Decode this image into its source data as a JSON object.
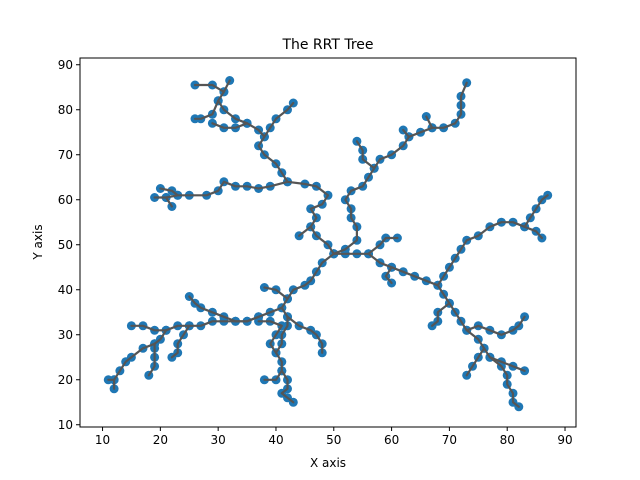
{
  "chart_data": {
    "type": "scatter",
    "title": "The RRT Tree",
    "xlabel": "X axis",
    "ylabel": "Y axis",
    "xlim": [
      6.1,
      91.9
    ],
    "ylim": [
      9.5,
      91.5
    ],
    "xticks": [
      10,
      20,
      30,
      40,
      50,
      60,
      70,
      80,
      90
    ],
    "yticks": [
      10,
      20,
      30,
      40,
      50,
      60,
      70,
      80,
      90
    ],
    "grid": false,
    "legend": "none",
    "colors": {
      "node": "#1f77b4",
      "edge": "#555555"
    },
    "root": [
      50,
      48
    ],
    "branches": [
      [
        [
          50,
          48
        ],
        [
          49,
          50
        ],
        [
          47,
          52
        ],
        [
          46,
          54
        ],
        [
          47,
          56
        ],
        [
          46,
          58
        ],
        [
          48,
          59
        ],
        [
          49,
          61
        ],
        [
          47,
          63
        ],
        [
          45,
          63.5
        ],
        [
          42,
          64
        ],
        [
          41,
          66
        ],
        [
          40,
          68
        ],
        [
          38,
          70
        ],
        [
          37,
          72
        ],
        [
          38,
          74
        ],
        [
          37,
          75.5
        ],
        [
          35,
          77
        ],
        [
          33,
          78
        ],
        [
          31,
          80
        ],
        [
          30,
          82
        ],
        [
          31,
          84
        ],
        [
          32,
          86.5
        ]
      ],
      [
        [
          31,
          84
        ],
        [
          29,
          85.5
        ],
        [
          26,
          85.5
        ]
      ],
      [
        [
          30,
          82
        ],
        [
          29,
          79
        ],
        [
          27,
          78
        ],
        [
          26,
          78
        ]
      ],
      [
        [
          35,
          77
        ],
        [
          33,
          76
        ],
        [
          31,
          76
        ],
        [
          29,
          77
        ]
      ],
      [
        [
          38,
          74
        ],
        [
          39,
          76
        ],
        [
          40,
          78
        ],
        [
          42,
          80
        ],
        [
          43,
          81.5
        ]
      ],
      [
        [
          42,
          64
        ],
        [
          39,
          63
        ],
        [
          37,
          62.5
        ],
        [
          35,
          63
        ],
        [
          33,
          63
        ],
        [
          31,
          64
        ],
        [
          30,
          62
        ],
        [
          28,
          61
        ],
        [
          25,
          61
        ],
        [
          23,
          61
        ],
        [
          21,
          60.5
        ],
        [
          19,
          60.5
        ]
      ],
      [
        [
          21,
          60.5
        ],
        [
          22,
          58.5
        ]
      ],
      [
        [
          23,
          61
        ],
        [
          22,
          62
        ],
        [
          20,
          62.5
        ]
      ],
      [
        [
          50,
          48
        ],
        [
          52,
          49
        ],
        [
          54,
          51
        ],
        [
          54,
          54
        ],
        [
          53,
          56
        ],
        [
          53,
          58
        ],
        [
          52,
          60
        ],
        [
          53,
          62
        ],
        [
          55,
          63
        ],
        [
          56,
          65
        ],
        [
          57,
          67
        ],
        [
          58,
          69
        ],
        [
          60,
          70
        ],
        [
          62,
          72
        ],
        [
          63,
          74
        ],
        [
          65,
          75
        ],
        [
          67,
          76
        ],
        [
          69,
          76
        ],
        [
          71,
          77
        ],
        [
          72,
          79
        ],
        [
          72,
          81
        ],
        [
          72,
          83
        ],
        [
          73,
          86
        ]
      ],
      [
        [
          57,
          67
        ],
        [
          55,
          69
        ],
        [
          55,
          71
        ],
        [
          54,
          73
        ]
      ],
      [
        [
          63,
          74
        ],
        [
          62,
          75.5
        ]
      ],
      [
        [
          67,
          76
        ],
        [
          66,
          78.5
        ]
      ],
      [
        [
          50,
          48
        ],
        [
          52,
          48
        ],
        [
          54,
          48
        ],
        [
          56,
          48
        ],
        [
          58,
          46
        ],
        [
          60,
          45
        ],
        [
          62,
          44
        ],
        [
          64,
          43
        ],
        [
          66,
          42
        ],
        [
          68,
          41
        ],
        [
          69,
          39
        ],
        [
          70,
          37
        ],
        [
          71,
          35
        ],
        [
          72,
          33
        ],
        [
          73,
          31
        ],
        [
          75,
          29
        ],
        [
          76,
          27
        ],
        [
          77,
          25
        ],
        [
          79,
          24
        ],
        [
          81,
          23
        ],
        [
          83,
          22
        ]
      ],
      [
        [
          56,
          48
        ],
        [
          58,
          50
        ],
        [
          59,
          51.5
        ],
        [
          61,
          51.5
        ]
      ],
      [
        [
          60,
          45
        ],
        [
          59,
          43
        ],
        [
          60,
          41.5
        ]
      ],
      [
        [
          70,
          37
        ],
        [
          68,
          35
        ],
        [
          68,
          33
        ],
        [
          67,
          32
        ]
      ],
      [
        [
          73,
          31
        ],
        [
          75,
          32
        ],
        [
          77,
          31
        ],
        [
          79,
          30
        ],
        [
          81,
          31
        ],
        [
          82,
          32
        ],
        [
          83,
          34
        ]
      ],
      [
        [
          76,
          27
        ],
        [
          75,
          25
        ],
        [
          74,
          23
        ],
        [
          73,
          21
        ]
      ],
      [
        [
          77,
          25
        ],
        [
          79,
          23
        ],
        [
          80,
          21
        ],
        [
          80,
          19
        ],
        [
          81,
          17
        ],
        [
          81,
          15
        ],
        [
          82,
          14
        ]
      ],
      [
        [
          68,
          41
        ],
        [
          69,
          43
        ],
        [
          70,
          45
        ],
        [
          71,
          47
        ],
        [
          72,
          49
        ],
        [
          73,
          51
        ],
        [
          75,
          52
        ],
        [
          77,
          54
        ],
        [
          79,
          55
        ],
        [
          81,
          55
        ],
        [
          83,
          54
        ],
        [
          85,
          53
        ],
        [
          86,
          51.5
        ]
      ],
      [
        [
          83,
          54
        ],
        [
          84,
          56
        ],
        [
          85,
          58
        ],
        [
          86,
          60
        ],
        [
          87,
          61
        ]
      ],
      [
        [
          46,
          54
        ],
        [
          44,
          52
        ]
      ],
      [
        [
          50,
          48
        ],
        [
          48,
          46
        ],
        [
          47,
          44
        ],
        [
          46,
          42
        ],
        [
          45,
          41
        ],
        [
          43,
          40
        ],
        [
          42,
          38
        ],
        [
          41,
          36
        ],
        [
          39,
          35
        ],
        [
          37,
          34
        ],
        [
          35,
          33
        ],
        [
          33,
          33
        ],
        [
          31,
          34
        ],
        [
          29,
          35
        ],
        [
          27,
          36
        ],
        [
          26,
          37
        ],
        [
          25,
          38.5
        ]
      ],
      [
        [
          42,
          38
        ],
        [
          40,
          40
        ],
        [
          38,
          40.5
        ]
      ],
      [
        [
          41,
          36
        ],
        [
          42,
          34
        ],
        [
          42,
          32
        ],
        [
          41,
          30
        ],
        [
          41,
          28
        ],
        [
          40,
          26
        ],
        [
          41,
          24
        ],
        [
          41,
          22
        ],
        [
          40,
          20
        ],
        [
          38,
          20
        ]
      ],
      [
        [
          41,
          22
        ],
        [
          42,
          20
        ],
        [
          42,
          18
        ],
        [
          41,
          17
        ],
        [
          42,
          16
        ],
        [
          43,
          15
        ]
      ],
      [
        [
          40,
          26
        ],
        [
          39,
          28
        ],
        [
          40,
          30
        ],
        [
          41,
          32
        ],
        [
          39,
          33
        ],
        [
          37,
          33
        ]
      ],
      [
        [
          42,
          34
        ],
        [
          44,
          32
        ],
        [
          46,
          31
        ],
        [
          47,
          30
        ],
        [
          48,
          28
        ],
        [
          48,
          26
        ]
      ],
      [
        [
          37,
          34
        ],
        [
          35,
          33
        ],
        [
          33,
          33
        ],
        [
          31,
          33
        ],
        [
          29,
          33
        ],
        [
          27,
          32
        ],
        [
          25,
          32
        ],
        [
          23,
          32
        ],
        [
          21,
          31
        ],
        [
          20,
          29
        ],
        [
          19,
          28
        ],
        [
          19,
          27
        ],
        [
          19,
          25
        ],
        [
          19,
          23
        ],
        [
          18,
          21
        ]
      ],
      [
        [
          25,
          32
        ],
        [
          24,
          30
        ],
        [
          23,
          28
        ],
        [
          23,
          26
        ],
        [
          22,
          25
        ]
      ],
      [
        [
          19,
          28
        ],
        [
          17,
          27
        ],
        [
          15,
          25
        ],
        [
          14,
          24
        ],
        [
          13,
          22
        ],
        [
          12,
          20
        ],
        [
          11,
          20
        ]
      ],
      [
        [
          12,
          20
        ],
        [
          12,
          18
        ]
      ],
      [
        [
          21,
          31
        ],
        [
          19,
          31
        ],
        [
          17,
          32
        ],
        [
          15,
          32
        ]
      ]
    ]
  }
}
